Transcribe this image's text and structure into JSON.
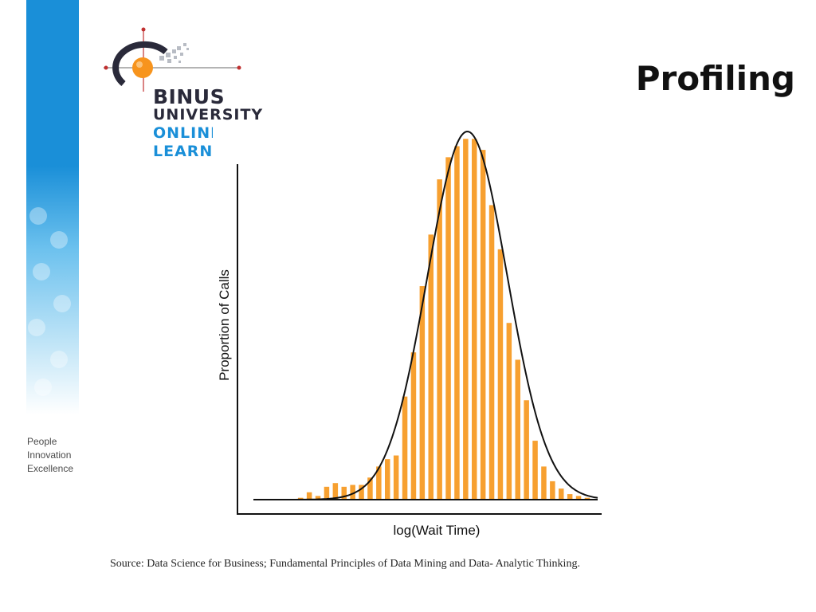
{
  "slide": {
    "title": "Profiling",
    "source_label": "Source:",
    "source_text": " Data Science for Business; Fundamental Principles of Data Mining and Data- Analytic Thinking.",
    "tagline": [
      "People",
      "Innovation",
      "Excellence"
    ]
  },
  "logo": {
    "line1": "BINUS",
    "line2": "UNIVERSITY",
    "line3": "ONLINE",
    "line4": "LEARNING",
    "accent": "#f7941d",
    "blue": "#1a8fd8"
  },
  "colors": {
    "bar": "#f7a030",
    "curve": "#111111",
    "axis": "#111111"
  },
  "chart_data": {
    "type": "bar",
    "xlabel": "log(Wait Time)",
    "ylabel": "Proportion of Calls",
    "grid": false,
    "legend": "none",
    "ylim": [
      0,
      100
    ],
    "values": [
      0.5,
      2,
      1,
      3.5,
      4.5,
      3.5,
      4,
      4,
      6,
      9,
      11,
      12,
      28,
      40,
      58,
      72,
      87,
      93,
      96,
      98,
      98,
      95,
      80,
      68,
      48,
      38,
      27,
      16,
      9,
      5,
      3,
      1.5,
      1,
      0.5
    ],
    "curve": {
      "type": "normal",
      "peak": 100,
      "center_index": 19.2,
      "sigma_bins": 4.6
    }
  }
}
